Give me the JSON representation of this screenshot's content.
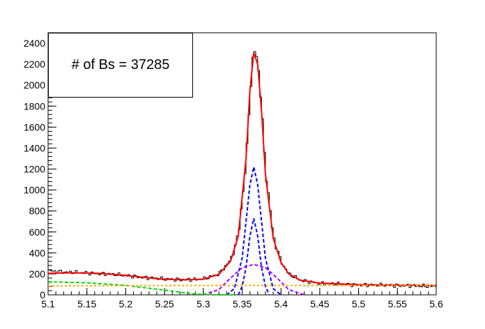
{
  "legend_label": "# of Bs = 37285",
  "chart_data": {
    "type": "line",
    "title": "",
    "xlabel": "",
    "ylabel": "",
    "xlim": [
      5.1,
      5.6
    ],
    "ylim": [
      0,
      2500
    ],
    "grid": false,
    "x_ticks": [
      "5.1",
      "5.15",
      "5.2",
      "5.25",
      "5.3",
      "5.35",
      "5.4",
      "5.45",
      "5.5",
      "5.55",
      "5.6"
    ],
    "y_ticks": [
      "0",
      "200",
      "400",
      "600",
      "800",
      "1000",
      "1200",
      "1400",
      "1600",
      "1800",
      "2000",
      "2200",
      "2400"
    ],
    "histogram": {
      "x": [
        5.1,
        5.125,
        5.15,
        5.175,
        5.2,
        5.225,
        5.25,
        5.275,
        5.3,
        5.32,
        5.335,
        5.345,
        5.355,
        5.36,
        5.365,
        5.37,
        5.375,
        5.38,
        5.39,
        5.4,
        5.41,
        5.425,
        5.45,
        5.5,
        5.55,
        5.6
      ],
      "y": [
        230,
        215,
        210,
        200,
        185,
        165,
        150,
        145,
        150,
        200,
        330,
        560,
        1250,
        1900,
        2350,
        2250,
        1800,
        1200,
        560,
        320,
        200,
        140,
        110,
        95,
        90,
        80
      ]
    },
    "series": [
      {
        "color": "#ff0000",
        "style": "solid",
        "x": [
          5.1,
          5.125,
          5.15,
          5.175,
          5.2,
          5.225,
          5.25,
          5.275,
          5.3,
          5.32,
          5.335,
          5.345,
          5.355,
          5.36,
          5.365,
          5.37,
          5.375,
          5.38,
          5.39,
          5.4,
          5.41,
          5.425,
          5.45,
          5.5,
          5.55,
          5.6
        ],
        "y": [
          205,
          210,
          208,
          200,
          185,
          165,
          150,
          143,
          150,
          195,
          320,
          560,
          1300,
          1950,
          2310,
          2200,
          1750,
          1150,
          540,
          310,
          200,
          140,
          112,
          97,
          92,
          90
        ]
      },
      {
        "color": "#0000ff",
        "style": "dashed",
        "x": [
          5.33,
          5.34,
          5.35,
          5.355,
          5.36,
          5.365,
          5.37,
          5.375,
          5.38,
          5.39,
          5.4
        ],
        "y": [
          0,
          60,
          350,
          700,
          1050,
          1220,
          1050,
          700,
          350,
          60,
          0
        ]
      },
      {
        "color": "#0000ff",
        "style": "dashed",
        "x": [
          5.345,
          5.35,
          5.355,
          5.36,
          5.365,
          5.37,
          5.375,
          5.38,
          5.385
        ],
        "y": [
          0,
          80,
          260,
          560,
          730,
          560,
          260,
          80,
          0
        ]
      },
      {
        "color": "#aa00ff",
        "style": "dashed",
        "x": [
          5.3,
          5.32,
          5.335,
          5.35,
          5.365,
          5.38,
          5.395,
          5.41,
          5.43
        ],
        "y": [
          0,
          50,
          160,
          260,
          290,
          260,
          160,
          50,
          0
        ]
      },
      {
        "color": "#00dd00",
        "style": "dashed",
        "x": [
          5.1,
          5.15,
          5.2,
          5.25,
          5.28,
          5.3,
          5.32,
          5.34
        ],
        "y": [
          125,
          115,
          90,
          45,
          15,
          5,
          0,
          0
        ]
      },
      {
        "color": "#ffaa00",
        "style": "dotted",
        "x": [
          5.1,
          5.2,
          5.3,
          5.4,
          5.5,
          5.6
        ],
        "y": [
          85,
          88,
          89,
          90,
          90,
          90
        ]
      }
    ]
  }
}
